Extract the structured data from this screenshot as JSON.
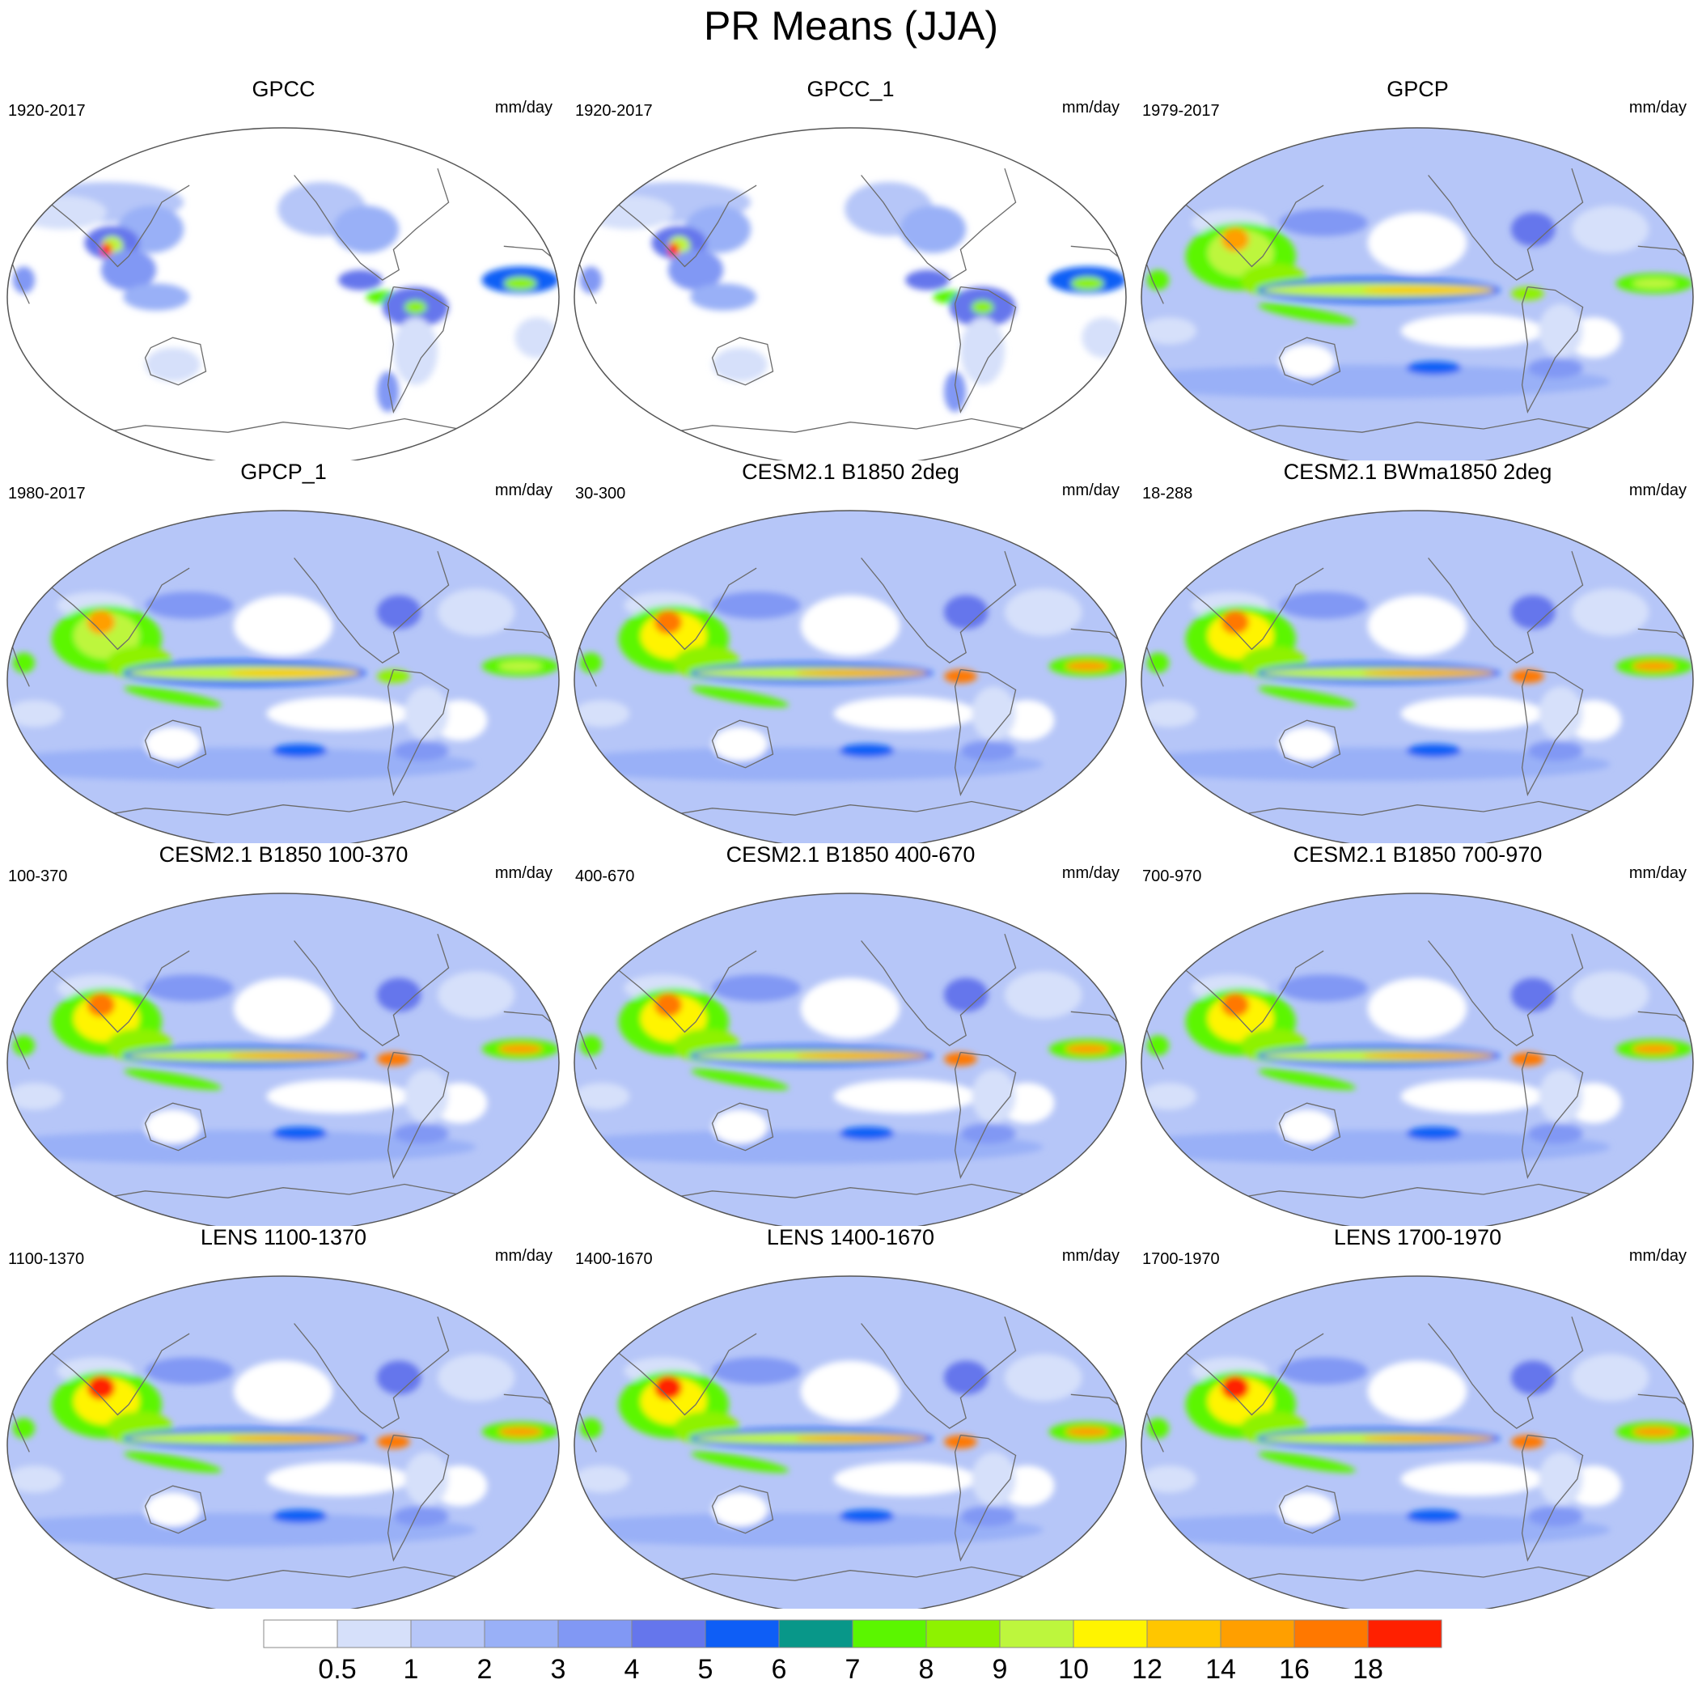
{
  "title": "PR Means (JJA)",
  "units": "mm/day",
  "panels": [
    {
      "title": "GPCC",
      "period": "1920-2017",
      "units": "mm/day",
      "style": "land"
    },
    {
      "title": "GPCC_1",
      "period": "1920-2017",
      "units": "mm/day",
      "style": "land"
    },
    {
      "title": "GPCP",
      "period": "1979-2017",
      "units": "mm/day",
      "style": "obs"
    },
    {
      "title": "GPCP_1",
      "period": "1980-2017",
      "units": "mm/day",
      "style": "obs"
    },
    {
      "title": "CESM2.1 B1850 2deg",
      "period": "30-300",
      "units": "mm/day",
      "style": "model"
    },
    {
      "title": "CESM2.1 BWma1850 2deg",
      "period": "18-288",
      "units": "mm/day",
      "style": "model"
    },
    {
      "title": "CESM2.1 B1850 100-370",
      "period": "100-370",
      "units": "mm/day",
      "style": "model"
    },
    {
      "title": "CESM2.1 B1850 400-670",
      "period": "400-670",
      "units": "mm/day",
      "style": "model"
    },
    {
      "title": "CESM2.1 B1850 700-970",
      "period": "700-970",
      "units": "mm/day",
      "style": "model"
    },
    {
      "title": "LENS 1100-1370",
      "period": "1100-1370",
      "units": "mm/day",
      "style": "lens"
    },
    {
      "title": "LENS 1400-1670",
      "period": "1400-1670",
      "units": "mm/day",
      "style": "lens"
    },
    {
      "title": "LENS 1700-1970",
      "period": "1700-1970",
      "units": "mm/day",
      "style": "lens"
    }
  ],
  "colorbar": {
    "labels": [
      "0.5",
      "1",
      "2",
      "3",
      "4",
      "5",
      "6",
      "7",
      "8",
      "9",
      "10",
      "12",
      "14",
      "16",
      "18"
    ],
    "colors": [
      "#ffffff",
      "#d6e0fa",
      "#b6c6f8",
      "#99b0f7",
      "#8198f4",
      "#6576ec",
      "#0e5ef6",
      "#089789",
      "#5bf600",
      "#8ef200",
      "#bdf63d",
      "#fff400",
      "#ffc600",
      "#ff9f00",
      "#ff7800",
      "#ff2000"
    ]
  }
}
